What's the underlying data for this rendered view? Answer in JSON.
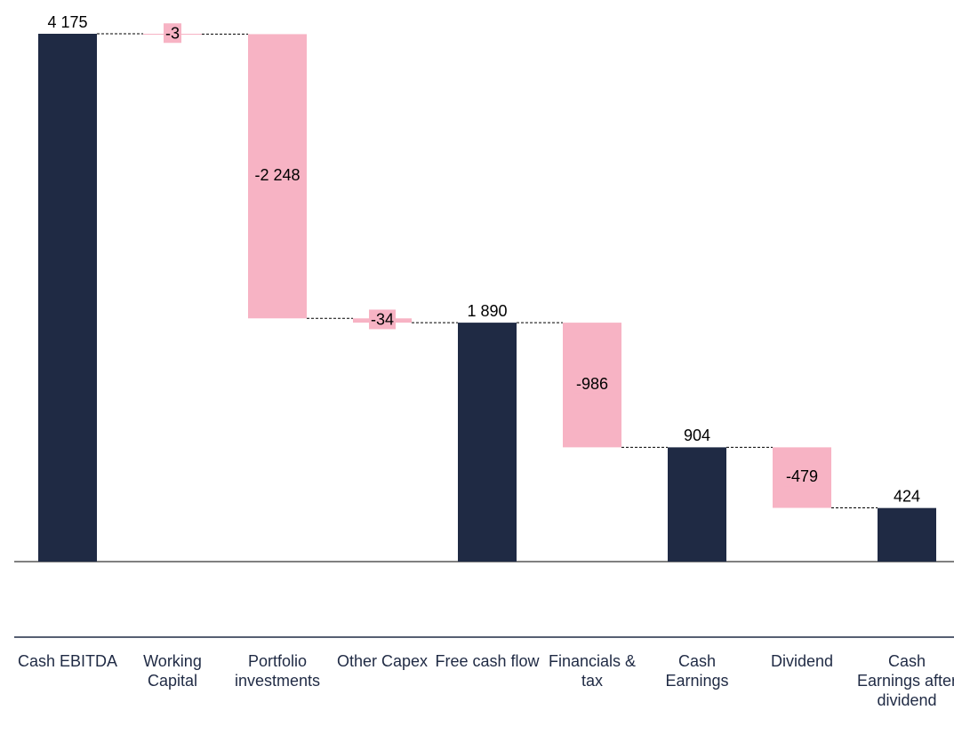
{
  "chart_data": {
    "type": "waterfall",
    "categories": [
      "Cash EBITDA",
      "Working Capital",
      "Portfolio investments",
      "Other Capex",
      "Free cash flow",
      "Financials & tax",
      "Cash Earnings",
      "Dividend",
      "Cash Earnings after dividend"
    ],
    "values": [
      4175,
      -3,
      -2248,
      -34,
      1890,
      -986,
      904,
      -479,
      424
    ],
    "value_labels": [
      "4 175",
      "-3",
      "-2 248",
      "-34",
      "1 890",
      "-986",
      "904",
      "-479",
      "424"
    ],
    "measure": [
      "total",
      "relative",
      "relative",
      "relative",
      "total",
      "relative",
      "total",
      "relative",
      "total"
    ],
    "total_color": "#1f2a44",
    "delta_color": "#f7b3c4"
  }
}
